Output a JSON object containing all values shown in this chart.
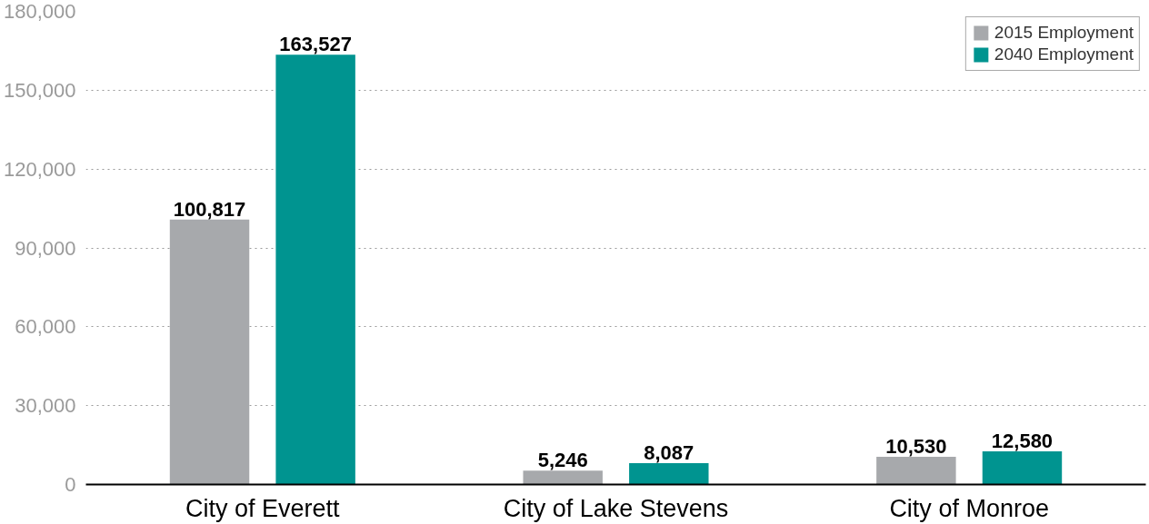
{
  "chart_data": {
    "type": "bar",
    "categories": [
      "City of Everett",
      "City of Lake Stevens",
      "City of Monroe"
    ],
    "series": [
      {
        "name": "2015 Employment",
        "color": "#a7a9ac",
        "values": [
          100817,
          5246,
          10530
        ],
        "value_labels": [
          "100,817",
          "5,246",
          "10,530"
        ]
      },
      {
        "name": "2040 Employment",
        "color": "#009490",
        "values": [
          163527,
          8087,
          12580
        ],
        "value_labels": [
          "163,527",
          "8,087",
          "12,580"
        ]
      }
    ],
    "ylim": [
      0,
      180000
    ],
    "yticks": [
      {
        "value": 0,
        "label": "0"
      },
      {
        "value": 30000,
        "label": "30,000"
      },
      {
        "value": 60000,
        "label": "60,000"
      },
      {
        "value": 90000,
        "label": "90,000"
      },
      {
        "value": 120000,
        "label": "120,000"
      },
      {
        "value": 150000,
        "label": "150,000"
      },
      {
        "value": 180000,
        "label": "180,000"
      }
    ],
    "grid": "y",
    "legend": "top right"
  }
}
